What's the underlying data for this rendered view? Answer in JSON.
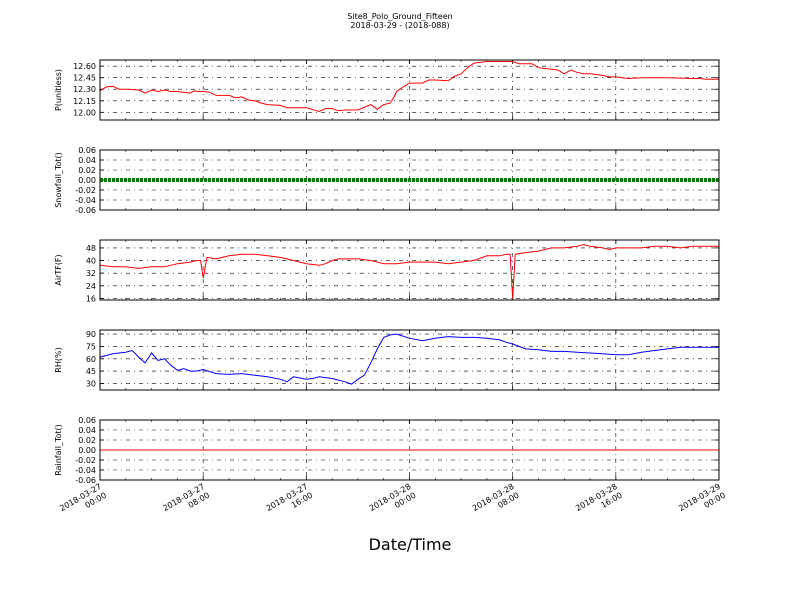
{
  "title": "Site8_Polo_Ground_Fifteen",
  "subtitle": "2018-03-29 - (2018-088)",
  "xlabel": "Date/Time",
  "chart_data": {
    "type": "line",
    "x_ticks": [
      {
        "line1": "2018-03-27",
        "line2": "00:00"
      },
      {
        "line1": "2018-03-27",
        "line2": "08:00"
      },
      {
        "line1": "2018-03-27",
        "line2": "16:00"
      },
      {
        "line1": "2018-03-28",
        "line2": "00:00"
      },
      {
        "line1": "2018-03-28",
        "line2": "08:00"
      },
      {
        "line1": "2018-03-28",
        "line2": "16:00"
      },
      {
        "line1": "2018-03-29",
        "line2": "00:00"
      }
    ],
    "x_range_hours": [
      0,
      48
    ],
    "grid": true,
    "panels": [
      {
        "ylabel": "P(unitless)",
        "color": "#ff0000",
        "ylim": [
          11.9,
          12.68
        ],
        "yticks": [
          "12.00",
          "12.15",
          "12.30",
          "12.45",
          "12.60"
        ],
        "hours": [
          0,
          0.5,
          1,
          1.5,
          2,
          3,
          3.5,
          4,
          4.5,
          5,
          5.5,
          6,
          7,
          7.3,
          7.6,
          8,
          8.5,
          9,
          10,
          10.5,
          11,
          11.5,
          12,
          12.5,
          13,
          14,
          14.5,
          15,
          16,
          17,
          17.5,
          18,
          18.5,
          19,
          19.5,
          20,
          21,
          21.5,
          22,
          22.5,
          22.8,
          23,
          23.5,
          24,
          25,
          25.5,
          26,
          27,
          27.5,
          28,
          28.5,
          29,
          30,
          31,
          32,
          32.5,
          33,
          33.5,
          34,
          35,
          35.5,
          36,
          36.5,
          37,
          37.5,
          38,
          39,
          39.5,
          40,
          40.5,
          41,
          42,
          44,
          46,
          46.5,
          47,
          48
        ],
        "values": [
          12.28,
          12.33,
          12.34,
          12.3,
          12.3,
          12.29,
          12.25,
          12.29,
          12.27,
          12.29,
          12.27,
          12.27,
          12.25,
          12.28,
          12.27,
          12.27,
          12.26,
          12.22,
          12.22,
          12.19,
          12.2,
          12.16,
          12.15,
          12.12,
          12.1,
          12.09,
          12.06,
          12.06,
          12.06,
          12.01,
          12.05,
          12.05,
          12.02,
          12.03,
          12.03,
          12.03,
          12.1,
          12.04,
          12.1,
          12.12,
          12.2,
          12.27,
          12.33,
          12.38,
          12.38,
          12.42,
          12.42,
          12.41,
          12.47,
          12.5,
          12.58,
          12.64,
          12.66,
          12.66,
          12.66,
          12.63,
          12.63,
          12.63,
          12.58,
          12.56,
          12.55,
          12.5,
          12.55,
          12.52,
          12.5,
          12.5,
          12.48,
          12.46,
          12.46,
          12.45,
          12.44,
          12.45,
          12.45,
          12.44,
          12.44,
          12.43,
          12.43
        ]
      },
      {
        "ylabel": "Snowfall_Tot()",
        "color": "#008000",
        "ylim": [
          -0.06,
          0.06
        ],
        "yticks": [
          "-0.06",
          "-0.04",
          "-0.02",
          "0.00",
          "0.02",
          "0.04",
          "0.06"
        ],
        "marker": "dot",
        "hours": [
          0,
          48
        ],
        "values": [
          0,
          0
        ]
      },
      {
        "ylabel": "AirTF(F)",
        "color": "#ff0000",
        "ylim": [
          15,
          53
        ],
        "yticks": [
          "16",
          "24",
          "32",
          "40",
          "48"
        ],
        "hours": [
          0,
          1,
          2,
          3,
          4,
          5,
          6,
          7,
          7.5,
          7.8,
          8,
          8.3,
          9,
          10,
          11,
          12,
          13,
          14,
          15,
          16,
          17,
          17.5,
          18,
          18.5,
          19,
          20,
          21,
          22,
          23,
          24,
          25,
          26,
          27,
          28,
          29,
          30,
          31,
          31.5,
          31.8,
          32,
          32.2,
          33,
          34,
          35,
          36,
          37,
          37.5,
          38,
          39,
          39.5,
          40,
          41,
          42,
          43,
          44,
          45,
          46,
          47,
          48
        ],
        "values": [
          37,
          36,
          36,
          35,
          36,
          36,
          38,
          39,
          40,
          40,
          29,
          42,
          41,
          43,
          44,
          44,
          43,
          42,
          40,
          38,
          37,
          38,
          40,
          41,
          41,
          41,
          40,
          38,
          38,
          39,
          39,
          39,
          38,
          39,
          40,
          43,
          43,
          44,
          44,
          16,
          44,
          45,
          46,
          48,
          48,
          49,
          50,
          49,
          48,
          47,
          48,
          48,
          48,
          49,
          49,
          48,
          49,
          49,
          49
        ]
      },
      {
        "ylabel": "RH(%)",
        "color": "#0000ff",
        "ylim": [
          22,
          95
        ],
        "yticks": [
          "30",
          "45",
          "60",
          "75",
          "90"
        ],
        "hours": [
          0,
          1,
          2,
          2.5,
          3,
          3.5,
          4,
          4.5,
          5,
          5.5,
          6,
          6.5,
          7,
          7.5,
          8,
          9,
          10,
          11,
          12,
          13,
          14,
          14.5,
          15,
          16,
          16.5,
          17,
          18,
          19,
          19.5,
          20,
          20.5,
          21,
          21.5,
          22,
          22.5,
          23,
          24,
          25,
          26,
          27,
          28,
          29,
          30,
          31,
          31.5,
          32,
          32.5,
          33,
          34,
          35,
          36,
          37,
          38,
          39,
          40,
          41,
          42,
          43,
          44,
          45,
          46,
          47,
          48
        ],
        "values": [
          62,
          66,
          68,
          70,
          62,
          55,
          67,
          58,
          60,
          52,
          46,
          48,
          45,
          45,
          47,
          42,
          41,
          42,
          40,
          38,
          35,
          32,
          38,
          35,
          36,
          38,
          36,
          32,
          29,
          35,
          40,
          55,
          72,
          86,
          89,
          90,
          85,
          82,
          85,
          87,
          86,
          86,
          85,
          83,
          80,
          78,
          75,
          72,
          71,
          69,
          69,
          68,
          67,
          66,
          65,
          65,
          68,
          70,
          72,
          74,
          74,
          74,
          74
        ]
      },
      {
        "ylabel": "Rainfall_Tot()",
        "color": "#ff0000",
        "ylim": [
          -0.06,
          0.06
        ],
        "yticks": [
          "-0.06",
          "-0.04",
          "-0.02",
          "0.00",
          "0.02",
          "0.04",
          "0.06"
        ],
        "hours": [
          0,
          48
        ],
        "values": [
          0,
          0
        ]
      }
    ]
  }
}
